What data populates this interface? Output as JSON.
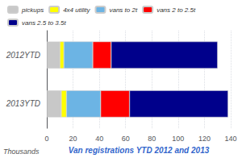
{
  "chart_data": {
    "type": "bar",
    "orientation": "horizontal",
    "stacked": true,
    "xlabel": "Van registrations YTD 2012 and 2013",
    "annotations": [
      "Thousands"
    ],
    "categories": [
      "2012YTD",
      "2013YTD"
    ],
    "series": [
      {
        "name": "pickups",
        "color": "#c8c8c8",
        "values": [
          10,
          11
        ]
      },
      {
        "name": "4x4 utility",
        "color": "#ffff00",
        "values": [
          3,
          4
        ]
      },
      {
        "name": "vans to 2t",
        "color": "#6cb4e4",
        "values": [
          22,
          26
        ]
      },
      {
        "name": "vans 2 to 2.5t",
        "color": "#ff0000",
        "values": [
          14,
          22
        ]
      },
      {
        "name": "vans 2.5 to 3.5t",
        "color": "#00008b",
        "values": [
          81,
          75
        ]
      }
    ],
    "xlim": [
      0,
      140
    ],
    "xticks": [
      0,
      20,
      40,
      60,
      80,
      100,
      120,
      140
    ],
    "grid": true,
    "legend": "upper left"
  }
}
